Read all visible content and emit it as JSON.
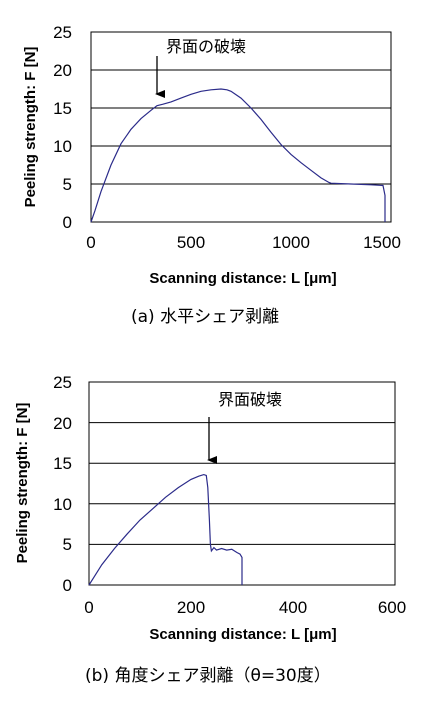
{
  "chart_data": [
    {
      "type": "line",
      "caption": "(a) 水平シェア剥離",
      "xlabel": "Scanning distance: L [μm]",
      "ylabel": "Peeling strength: F [N]",
      "xlim": [
        0,
        1500
      ],
      "ylim": [
        0,
        25
      ],
      "xticks": [
        "0",
        "500",
        "1000",
        "1500"
      ],
      "yticks": [
        "0",
        "5",
        "10",
        "15",
        "20",
        "25"
      ],
      "grid": "horizontal",
      "annotation": {
        "text": "界面の破壊",
        "x": 330,
        "y": 15.3
      },
      "series": [
        {
          "color": "#2b2b8a",
          "x": [
            0,
            20,
            50,
            100,
            150,
            200,
            250,
            300,
            330,
            360,
            400,
            450,
            500,
            550,
            600,
            650,
            680,
            700,
            750,
            800,
            850,
            900,
            950,
            1000,
            1050,
            1100,
            1150,
            1190,
            1200,
            1300,
            1400,
            1460,
            1470,
            1470
          ],
          "y": [
            0,
            1.5,
            4,
            7.5,
            10.3,
            12.2,
            13.6,
            14.7,
            15.3,
            15.5,
            15.8,
            16.3,
            16.8,
            17.2,
            17.4,
            17.5,
            17.4,
            17.2,
            16.3,
            15.0,
            13.5,
            11.8,
            10.2,
            8.9,
            7.8,
            6.8,
            5.8,
            5.2,
            5.1,
            5.0,
            4.9,
            4.8,
            3.5,
            0
          ]
        }
      ]
    },
    {
      "type": "line",
      "caption": "(b) 角度シェア剥離（θ=30度）",
      "xlabel": "Scanning distance: L [μm]",
      "ylabel": "Peeling strength: F [N]",
      "xlim": [
        0,
        600
      ],
      "ylim": [
        0,
        25
      ],
      "xticks": [
        "0",
        "200",
        "400",
        "600"
      ],
      "yticks": [
        "0",
        "5",
        "10",
        "15",
        "20",
        "25"
      ],
      "grid": "horizontal",
      "annotation": {
        "text": "界面破壊",
        "x": 235,
        "y": 14.5
      },
      "series": [
        {
          "color": "#2b2b8a",
          "x": [
            0,
            10,
            25,
            50,
            75,
            100,
            125,
            150,
            175,
            200,
            215,
            225,
            230,
            233,
            236,
            238,
            240,
            245,
            250,
            260,
            270,
            280,
            290,
            296,
            300,
            300
          ],
          "y": [
            0,
            1,
            2.5,
            4.5,
            6.3,
            8.0,
            9.4,
            10.8,
            12.0,
            13.0,
            13.4,
            13.6,
            13.5,
            12.0,
            8.0,
            5.0,
            4.2,
            4.6,
            4.3,
            4.5,
            4.3,
            4.4,
            4.0,
            3.8,
            3.4,
            0
          ]
        }
      ]
    }
  ]
}
